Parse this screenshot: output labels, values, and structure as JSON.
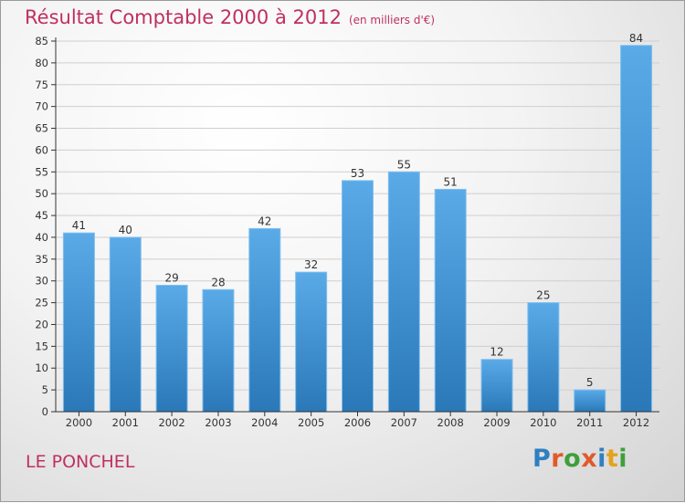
{
  "header": {
    "title": "Résultat Comptable 2000 à 2012",
    "subtitle": "(en milliers d'€)"
  },
  "footer": {
    "location": "LE PONCHEL",
    "brand": "Proxiti"
  },
  "brand_colors": [
    "#2f7fc1",
    "#e2592b",
    "#3f9f3b",
    "#e2592b",
    "#2f7fc1",
    "#e5a21a",
    "#3f9f3b"
  ],
  "colors": {
    "accent": "#c0305f",
    "bar_top": "#5aaae8",
    "bar_bottom": "#2a78b8",
    "grid": "#cfcfcf",
    "axis": "#333333"
  },
  "chart_data": {
    "type": "bar",
    "title": "Résultat Comptable 2000 à 2012",
    "subtitle": "(en milliers d'€)",
    "categories": [
      "2000",
      "2001",
      "2002",
      "2003",
      "2004",
      "2005",
      "2006",
      "2007",
      "2008",
      "2009",
      "2010",
      "2011",
      "2012"
    ],
    "values": [
      41,
      40,
      29,
      28,
      42,
      32,
      53,
      55,
      51,
      12,
      25,
      5,
      84
    ],
    "xlabel": "",
    "ylabel": "",
    "ylim": [
      0,
      85
    ],
    "ytick_step": 5,
    "grid": true,
    "legend": "none"
  }
}
